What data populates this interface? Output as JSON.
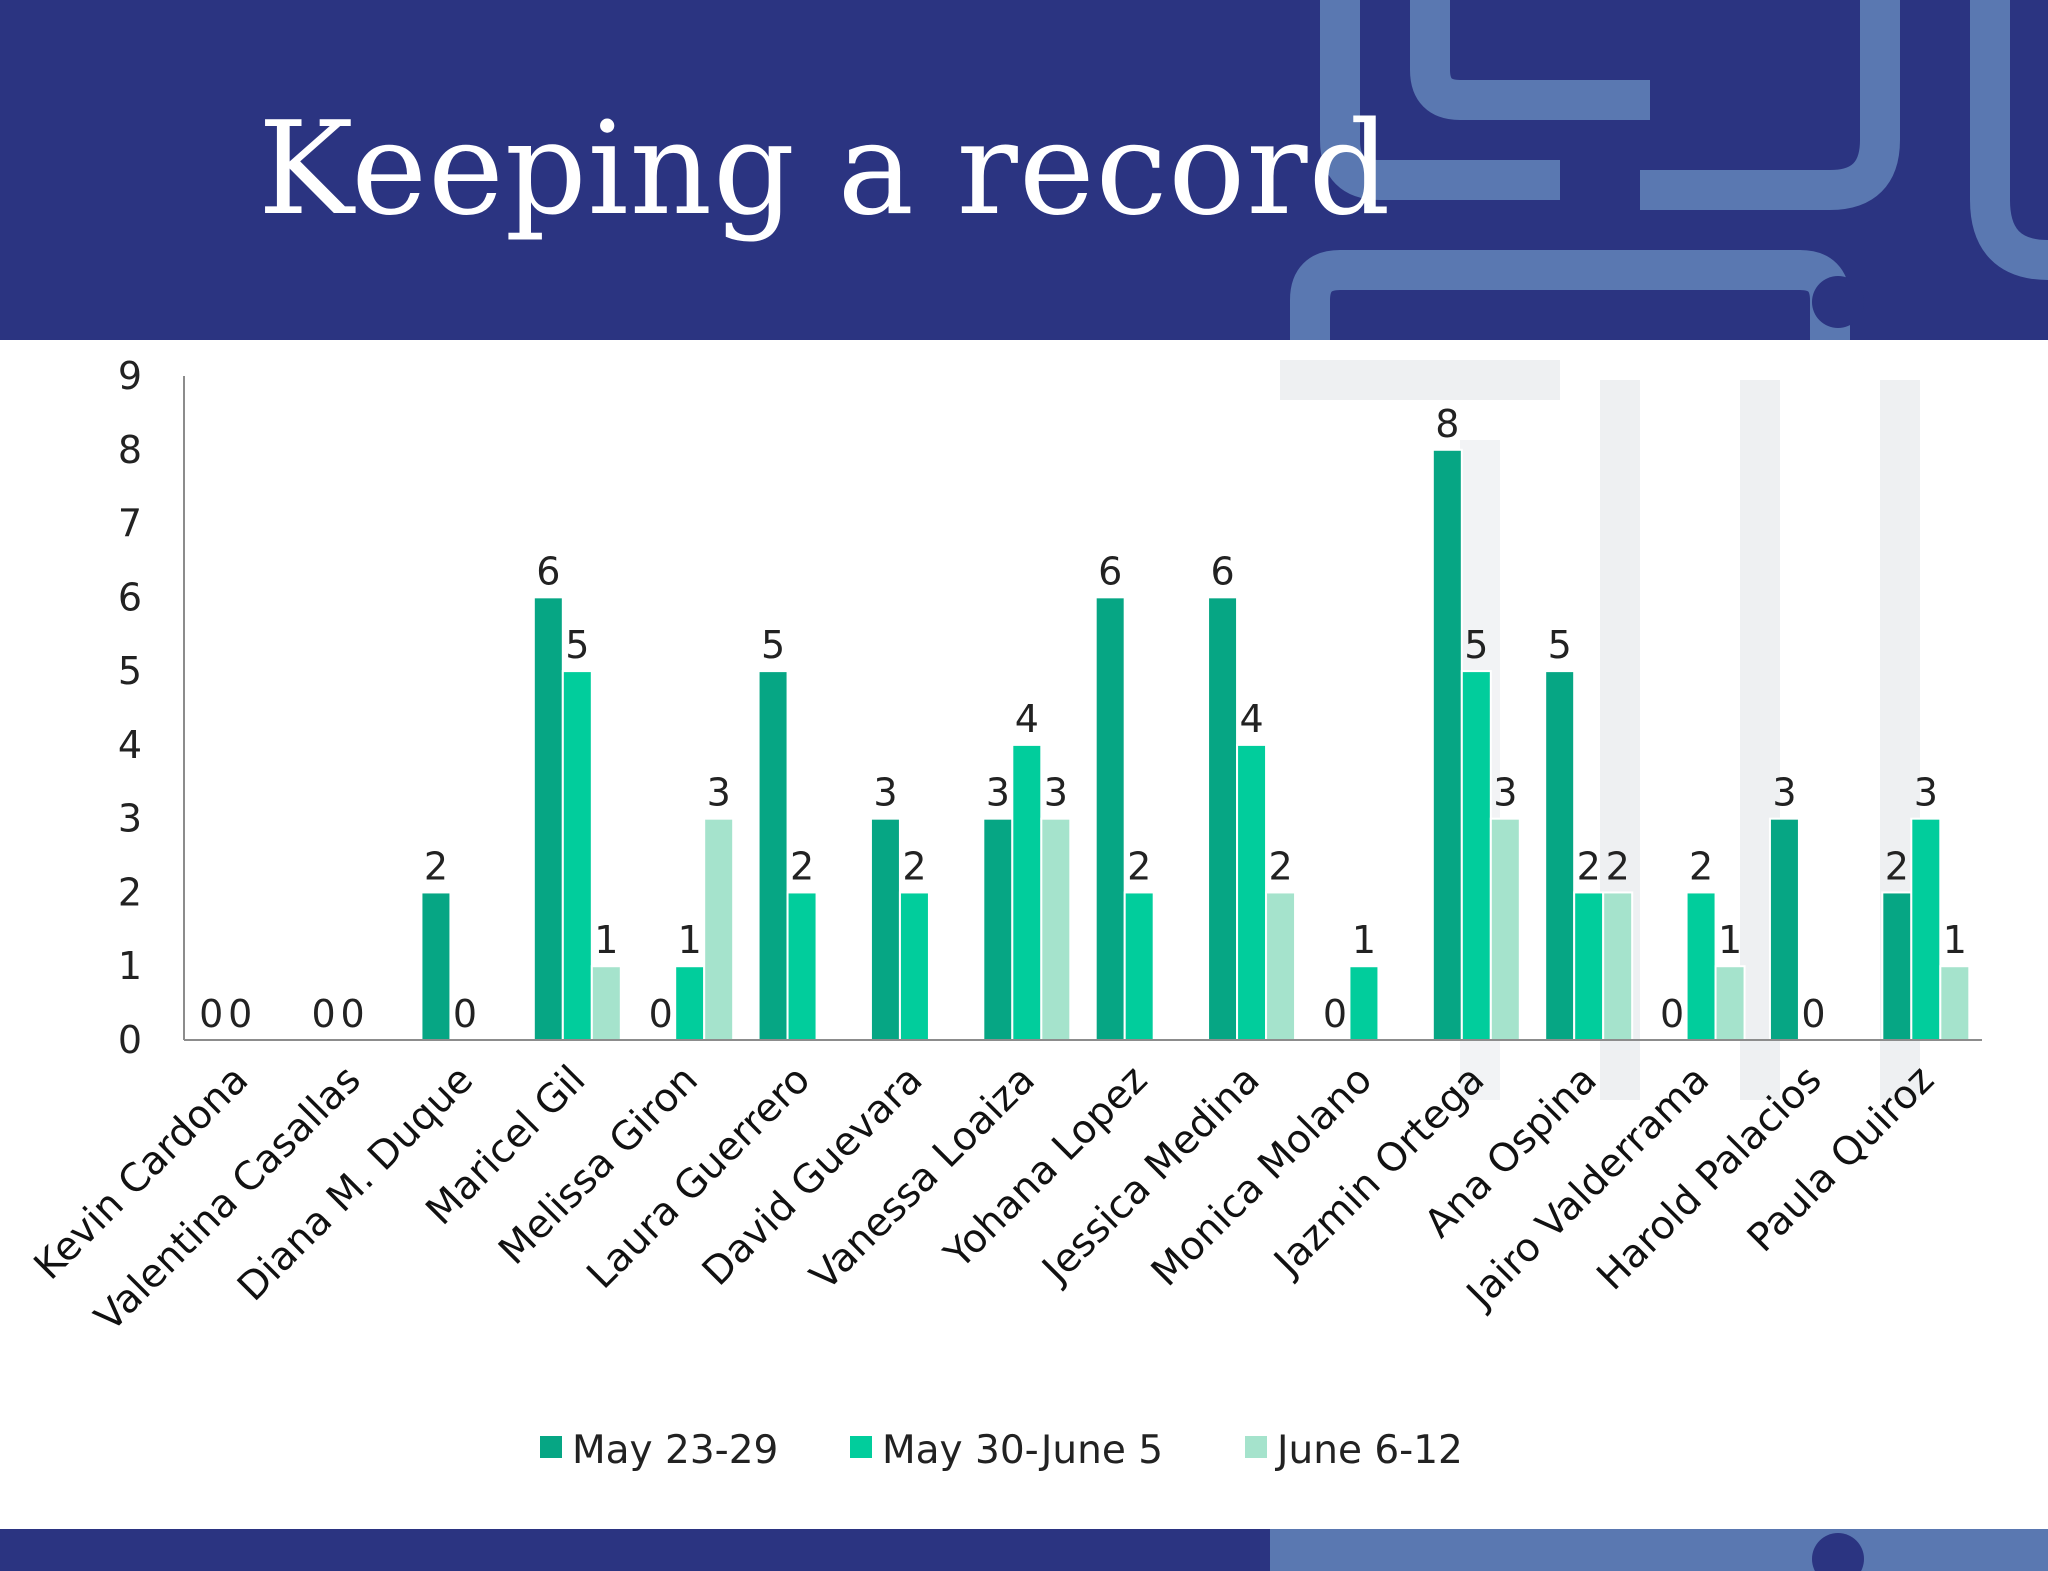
{
  "slide": {
    "title": "Keeping a record"
  },
  "colors": {
    "header_bg": "#2b3481",
    "deco_light": "#5a78b1",
    "series": [
      "#06a684",
      "#01cd9c",
      "#a5e3cc"
    ]
  },
  "chart_data": {
    "type": "bar",
    "categories": [
      "Kevin Cardona",
      "Valentina Casallas",
      "Diana M. Duque",
      "Maricel Gil",
      "Melissa Giron",
      "Laura Guerrero",
      "David Guevara",
      "Vanessa Loaiza",
      "Yohana Lopez",
      "Jessica Medina",
      "Monica Molano",
      "Jazmin Ortega",
      "Ana Ospina",
      "Jairo Valderrama",
      "Harold Palacios",
      "Paula Quiroz"
    ],
    "series": [
      {
        "name": "May 23-29",
        "values": [
          0,
          0,
          2,
          6,
          0,
          5,
          3,
          3,
          6,
          6,
          0,
          8,
          5,
          0,
          3,
          2
        ]
      },
      {
        "name": "May 30-June 5",
        "values": [
          0,
          0,
          0,
          5,
          1,
          2,
          2,
          4,
          2,
          4,
          1,
          5,
          2,
          2,
          0,
          3
        ]
      },
      {
        "name": "June 6-12",
        "values": [
          null,
          null,
          null,
          1,
          3,
          null,
          null,
          3,
          null,
          2,
          null,
          3,
          2,
          1,
          null,
          1
        ]
      }
    ],
    "ylim": [
      0,
      9
    ],
    "yticks": [
      0,
      1,
      2,
      3,
      4,
      5,
      6,
      7,
      8,
      9
    ],
    "legend_position": "bottom",
    "grid": false,
    "xlabel": "",
    "ylabel": ""
  }
}
